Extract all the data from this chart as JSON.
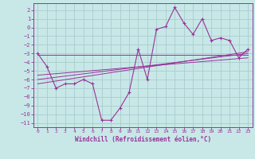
{
  "xlabel": "Windchill (Refroidissement éolien,°C)",
  "xlim": [
    -0.5,
    23.5
  ],
  "ylim": [
    -11.5,
    2.8
  ],
  "yticks": [
    2,
    1,
    0,
    -1,
    -2,
    -3,
    -4,
    -5,
    -6,
    -7,
    -8,
    -9,
    -10,
    -11
  ],
  "xticks": [
    0,
    1,
    2,
    3,
    4,
    5,
    6,
    7,
    8,
    9,
    10,
    11,
    12,
    13,
    14,
    15,
    16,
    17,
    18,
    19,
    20,
    21,
    22,
    23
  ],
  "bg_color": "#c8e8e8",
  "line_color": "#993399",
  "grid_color": "#aacccc",
  "data_x": [
    0,
    1,
    2,
    3,
    4,
    5,
    6,
    7,
    8,
    9,
    10,
    11,
    12,
    13,
    14,
    15,
    16,
    17,
    18,
    19,
    20,
    21,
    22,
    23
  ],
  "data_y": [
    -3.0,
    -4.5,
    -7.0,
    -6.5,
    -6.5,
    -6.0,
    -6.5,
    -10.7,
    -10.7,
    -9.3,
    -7.5,
    -2.5,
    -6.0,
    -0.2,
    0.1,
    2.3,
    0.5,
    -0.8,
    1.0,
    -1.5,
    -1.2,
    -1.5,
    -3.5,
    -2.5
  ],
  "trend_lines": [
    {
      "x": [
        0,
        23
      ],
      "y": [
        -3.2,
        -3.2
      ]
    },
    {
      "x": [
        0,
        23
      ],
      "y": [
        -5.5,
        -3.5
      ]
    },
    {
      "x": [
        0,
        23
      ],
      "y": [
        -6.0,
        -3.0
      ]
    },
    {
      "x": [
        0,
        23
      ],
      "y": [
        -6.5,
        -2.8
      ]
    }
  ]
}
